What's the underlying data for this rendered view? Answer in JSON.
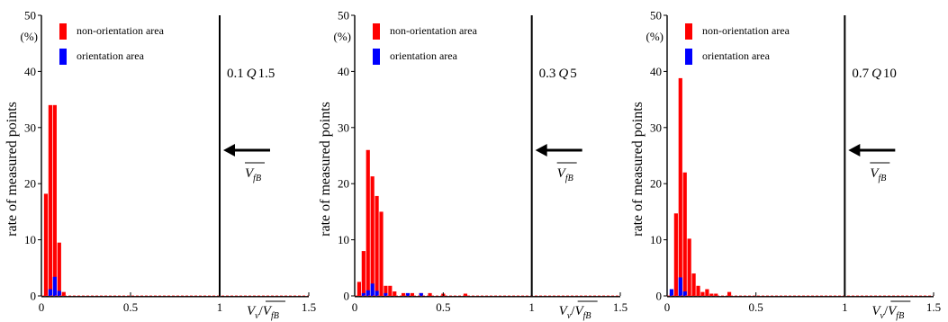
{
  "chart_data": [
    {
      "type": "bar",
      "title": "",
      "xlabel_main": "V",
      "xlabel_sub": "v",
      "xlabel_denom_main": "V",
      "xlabel_denom_sub": "fB",
      "ylabel": "rate of measured points",
      "yunit": "(%)",
      "xlim": [
        0,
        1.5
      ],
      "ylim": [
        0,
        50
      ],
      "xticks": [
        "0",
        "0.5",
        "1",
        "1.5"
      ],
      "yticks": [
        "0",
        "10",
        "20",
        "30",
        "40",
        "50"
      ],
      "condition_left": "0.1",
      "condition_symbol": "Q",
      "condition_right": "1.5",
      "arrow_label_main": "V",
      "arrow_label_sub": "fB",
      "vline_x": 1.0,
      "series": [
        {
          "name": "non-orientation area",
          "color": "#ff0000",
          "x": [
            0.025,
            0.05,
            0.075,
            0.1,
            0.125
          ],
          "values": [
            18.2,
            34.0,
            34.0,
            9.5,
            0.7
          ]
        },
        {
          "name": "orientation area",
          "color": "#0000ff",
          "x": [
            0.05,
            0.075,
            0.1
          ],
          "values": [
            1.2,
            3.4,
            0.9
          ]
        }
      ]
    },
    {
      "type": "bar",
      "title": "",
      "xlabel_main": "V",
      "xlabel_sub": "v",
      "xlabel_denom_main": "V",
      "xlabel_denom_sub": "fB",
      "ylabel": "rate of measured points",
      "yunit": "(%)",
      "xlim": [
        0,
        1.5
      ],
      "ylim": [
        0,
        50
      ],
      "xticks": [
        "0",
        "0.5",
        "1",
        "1.5"
      ],
      "yticks": [
        "0",
        "10",
        "20",
        "30",
        "40",
        "50"
      ],
      "condition_left": "0.3",
      "condition_symbol": "Q",
      "condition_right": "5",
      "arrow_label_main": "V",
      "arrow_label_sub": "fB",
      "vline_x": 1.0,
      "series": [
        {
          "name": "non-orientation area",
          "color": "#ff0000",
          "x": [
            0.025,
            0.05,
            0.075,
            0.1,
            0.125,
            0.15,
            0.175,
            0.2,
            0.225,
            0.275,
            0.325,
            0.375,
            0.425,
            0.5,
            0.625
          ],
          "values": [
            2.5,
            8.0,
            26.0,
            21.3,
            17.8,
            15.0,
            1.8,
            1.8,
            0.8,
            0.5,
            0.5,
            0.5,
            0.5,
            0.4,
            0.4
          ]
        },
        {
          "name": "orientation area",
          "color": "#0000ff",
          "x": [
            0.05,
            0.075,
            0.1,
            0.125,
            0.175,
            0.3,
            0.375
          ],
          "values": [
            0.5,
            1.0,
            2.2,
            0.9,
            0.5,
            0.5,
            0.5
          ]
        }
      ]
    },
    {
      "type": "bar",
      "title": "",
      "xlabel_main": "V",
      "xlabel_sub": "v",
      "xlabel_denom_main": "V",
      "xlabel_denom_sub": "fB",
      "ylabel": "rate of measured points",
      "yunit": "(%)",
      "xlim": [
        0,
        1.5
      ],
      "ylim": [
        0,
        50
      ],
      "xticks": [
        "0",
        "0.5",
        "1",
        "1.5"
      ],
      "yticks": [
        "0",
        "10",
        "20",
        "30",
        "40",
        "50"
      ],
      "condition_left": "0.7",
      "condition_symbol": "Q",
      "condition_right": "10",
      "arrow_label_main": "V",
      "arrow_label_sub": "fB",
      "vline_x": 1.0,
      "series": [
        {
          "name": "non-orientation area",
          "color": "#ff0000",
          "x": [
            0.025,
            0.05,
            0.075,
            0.1,
            0.125,
            0.15,
            0.175,
            0.2,
            0.225,
            0.25,
            0.275,
            0.35
          ],
          "values": [
            0.5,
            14.7,
            38.8,
            22.0,
            10.2,
            4.0,
            1.8,
            0.7,
            1.2,
            0.4,
            0.4,
            0.7
          ]
        },
        {
          "name": "orientation area",
          "color": "#0000ff",
          "x": [
            0.025,
            0.075,
            0.1
          ],
          "values": [
            1.2,
            3.3,
            0.8
          ]
        }
      ]
    }
  ]
}
